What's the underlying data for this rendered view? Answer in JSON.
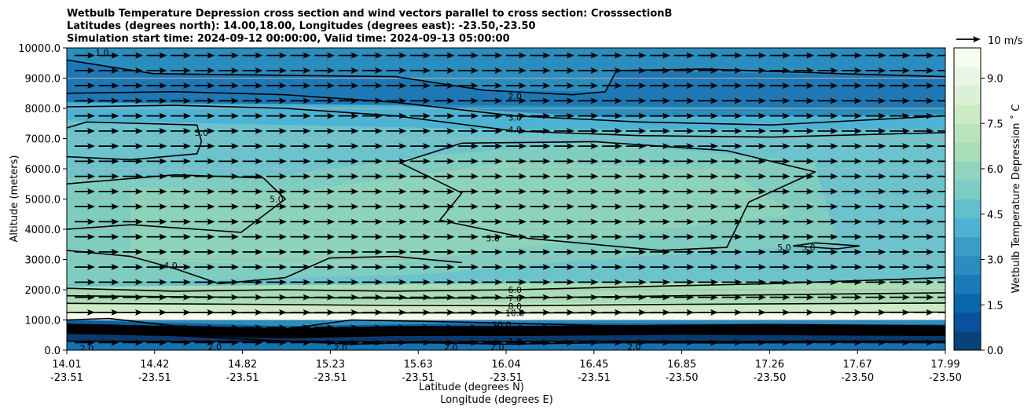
{
  "chart_data": {
    "type": "contour",
    "title_lines": [
      "Wetbulb Temperature Depression cross section and wind vectors parallel to cross section: CrosssectionB",
      "Latitudes (degrees north): 14.00,18.00, Longitudes (degrees east): -23.50,-23.50",
      "Simulation start time: 2024-09-12 00:00:00, Valid time: 2024-09-13 05:00:00"
    ],
    "ylabel": "Altitude (meters)",
    "xlabel_lat": "Latitude (degrees N)",
    "xlabel_lon": "Longitude (degrees E)",
    "ylim": [
      0,
      10000
    ],
    "yticks": [
      "0.0",
      "1000.0",
      "2000.0",
      "3000.0",
      "4000.0",
      "5000.0",
      "6000.0",
      "7000.0",
      "8000.0",
      "9000.0",
      "10000.0"
    ],
    "xticks_lat": [
      "14.01",
      "14.42",
      "14.82",
      "15.23",
      "15.63",
      "16.04",
      "16.45",
      "16.85",
      "17.26",
      "17.67",
      "17.99"
    ],
    "xticks_lon": [
      "-23.51",
      "-23.51",
      "-23.51",
      "-23.51",
      "-23.51",
      "-23.51",
      "-23.51",
      "-23.50",
      "-23.50",
      "-23.50",
      "-23.50"
    ],
    "xlim": [
      14.01,
      17.99
    ],
    "grid": "horizontal",
    "colorbar": {
      "label": "Wetbulb Temperature Depression $^\\circ$C",
      "ticks": [
        "0.0",
        "1.5",
        "3.0",
        "4.5",
        "6.0",
        "7.5",
        "9.0"
      ],
      "range": [
        0,
        10
      ],
      "colormap": "GnBu_r"
    },
    "quiver_key": {
      "label": "10 m/s",
      "speed_ms": 10
    },
    "wind_direction": "east",
    "contour_labels": [
      {
        "text": "2.0",
        "lat": 16.04,
        "alt": 8400
      },
      {
        "text": "3.0",
        "lat": 16.04,
        "alt": 7700
      },
      {
        "text": "4.0",
        "lat": 16.04,
        "alt": 7300
      },
      {
        "text": "5.0",
        "lat": 14.62,
        "alt": 7200
      },
      {
        "text": "5.0",
        "lat": 14.96,
        "alt": 5000
      },
      {
        "text": "4.0",
        "lat": 14.48,
        "alt": 2800
      },
      {
        "text": "5.0",
        "lat": 15.94,
        "alt": 3700
      },
      {
        "text": "5.0",
        "lat": 17.37,
        "alt": 3400
      },
      {
        "text": "5.0",
        "lat": 17.26,
        "alt": 3400
      },
      {
        "text": "6.0",
        "lat": 16.04,
        "alt": 2000
      },
      {
        "text": "7.0",
        "lat": 16.04,
        "alt": 1720
      },
      {
        "text": "8.0",
        "lat": 16.04,
        "alt": 1460
      },
      {
        "text": "10.0",
        "lat": 16.04,
        "alt": 1230
      },
      {
        "text": "10.0",
        "lat": 15.98,
        "alt": 850
      },
      {
        "text": "1.0",
        "lat": 16.04,
        "alt": 280
      },
      {
        "text": "2.0",
        "lat": 14.1,
        "alt": 60
      },
      {
        "text": "2.0",
        "lat": 14.68,
        "alt": 120
      },
      {
        "text": "2.0",
        "lat": 15.25,
        "alt": 90
      },
      {
        "text": "2.0",
        "lat": 15.75,
        "alt": 100
      },
      {
        "text": "2.0",
        "lat": 15.96,
        "alt": 100
      },
      {
        "text": "2.0",
        "lat": 16.58,
        "alt": 120
      },
      {
        "text": "1.0",
        "lat": 14.17,
        "alt": 9850
      }
    ],
    "contours": [
      {
        "level": 1.0,
        "points": [
          [
            14.01,
            300
          ],
          [
            14.5,
            290
          ],
          [
            15.0,
            300
          ],
          [
            15.5,
            280
          ],
          [
            16.04,
            290
          ],
          [
            16.5,
            300
          ],
          [
            17.0,
            290
          ],
          [
            17.5,
            300
          ],
          [
            17.99,
            300
          ]
        ]
      },
      {
        "level": 2.0,
        "points": [
          [
            14.01,
            9600
          ],
          [
            14.4,
            9150
          ],
          [
            14.9,
            9100
          ],
          [
            15.5,
            9050
          ],
          [
            15.9,
            8600
          ],
          [
            16.3,
            8450
          ],
          [
            16.45,
            8550
          ],
          [
            16.5,
            9250
          ],
          [
            16.9,
            9300
          ],
          [
            17.5,
            9150
          ],
          [
            17.99,
            9050
          ]
        ]
      },
      {
        "level": 2.0,
        "points": [
          [
            14.01,
            560
          ],
          [
            14.5,
            480
          ],
          [
            15.0,
            300
          ],
          [
            15.3,
            200
          ],
          [
            15.6,
            250
          ],
          [
            16.0,
            200
          ],
          [
            16.5,
            250
          ],
          [
            17.0,
            240
          ],
          [
            17.5,
            260
          ],
          [
            17.99,
            250
          ]
        ]
      },
      {
        "level": 3.0,
        "points": [
          [
            14.01,
            8500
          ],
          [
            14.5,
            8550
          ],
          [
            15.0,
            8450
          ],
          [
            15.5,
            8200
          ],
          [
            16.04,
            7750
          ],
          [
            16.6,
            7550
          ],
          [
            17.2,
            7450
          ],
          [
            17.99,
            7750
          ]
        ]
      },
      {
        "level": 4.0,
        "points": [
          [
            14.01,
            8050
          ],
          [
            14.5,
            8100
          ],
          [
            15.0,
            8000
          ],
          [
            15.5,
            7750
          ],
          [
            16.04,
            7250
          ],
          [
            16.6,
            7100
          ],
          [
            17.2,
            7050
          ],
          [
            17.99,
            7200
          ]
        ]
      },
      {
        "level": 5.0,
        "points": [
          [
            14.01,
            7350
          ],
          [
            14.1,
            7550
          ],
          [
            14.6,
            7450
          ],
          [
            14.62,
            6900
          ],
          [
            14.6,
            6500
          ],
          [
            14.3,
            6300
          ],
          [
            14.01,
            6400
          ]
        ]
      },
      {
        "level": 5.0,
        "points": [
          [
            14.01,
            4000
          ],
          [
            14.3,
            4150
          ],
          [
            14.8,
            3900
          ],
          [
            15.0,
            5000
          ],
          [
            14.9,
            5700
          ],
          [
            14.5,
            5800
          ],
          [
            14.01,
            5500
          ]
        ]
      },
      {
        "level": 5.0,
        "points": [
          [
            15.52,
            6200
          ],
          [
            15.8,
            6850
          ],
          [
            16.4,
            6900
          ],
          [
            17.0,
            6600
          ],
          [
            17.4,
            5900
          ],
          [
            17.1,
            4900
          ],
          [
            17.0,
            3400
          ],
          [
            16.7,
            3300
          ],
          [
            16.1,
            3700
          ],
          [
            15.7,
            4300
          ],
          [
            15.8,
            5200
          ],
          [
            15.52,
            6200
          ]
        ]
      },
      {
        "level": 5.0,
        "points": [
          [
            17.3,
            3450
          ],
          [
            17.5,
            3350
          ],
          [
            17.6,
            3450
          ],
          [
            17.4,
            3550
          ],
          [
            17.3,
            3450
          ]
        ]
      },
      {
        "level": 4.0,
        "points": [
          [
            14.01,
            3300
          ],
          [
            14.3,
            3100
          ],
          [
            14.5,
            2700
          ],
          [
            14.7,
            2200
          ],
          [
            15.0,
            2400
          ],
          [
            15.2,
            3050
          ],
          [
            15.5,
            3100
          ],
          [
            15.8,
            2900
          ]
        ]
      },
      {
        "level": 6.0,
        "points": [
          [
            14.01,
            2050
          ],
          [
            14.5,
            1950
          ],
          [
            15.0,
            2000
          ],
          [
            15.5,
            1950
          ],
          [
            16.04,
            2000
          ],
          [
            16.6,
            2100
          ],
          [
            17.2,
            2200
          ],
          [
            17.99,
            2400
          ]
        ]
      },
      {
        "level": 7.0,
        "points": [
          [
            14.01,
            1800
          ],
          [
            14.8,
            1750
          ],
          [
            15.5,
            1720
          ],
          [
            16.04,
            1730
          ],
          [
            16.8,
            1800
          ],
          [
            17.99,
            1900
          ]
        ]
      },
      {
        "level": 8.0,
        "points": [
          [
            14.01,
            1550
          ],
          [
            14.8,
            1520
          ],
          [
            15.5,
            1480
          ],
          [
            16.04,
            1470
          ],
          [
            16.8,
            1520
          ],
          [
            17.99,
            1560
          ]
        ]
      },
      {
        "level": 10.0,
        "points": [
          [
            14.01,
            1250
          ],
          [
            14.8,
            1240
          ],
          [
            15.5,
            1230
          ],
          [
            16.04,
            1230
          ],
          [
            16.8,
            1240
          ],
          [
            17.99,
            1260
          ]
        ]
      },
      {
        "level": 10.0,
        "points": [
          [
            14.01,
            1000
          ],
          [
            14.2,
            1050
          ],
          [
            14.5,
            800
          ],
          [
            15.0,
            700
          ],
          [
            15.3,
            1000
          ],
          [
            16.0,
            900
          ],
          [
            16.5,
            800
          ],
          [
            17.2,
            850
          ],
          [
            17.99,
            800
          ]
        ]
      }
    ]
  }
}
